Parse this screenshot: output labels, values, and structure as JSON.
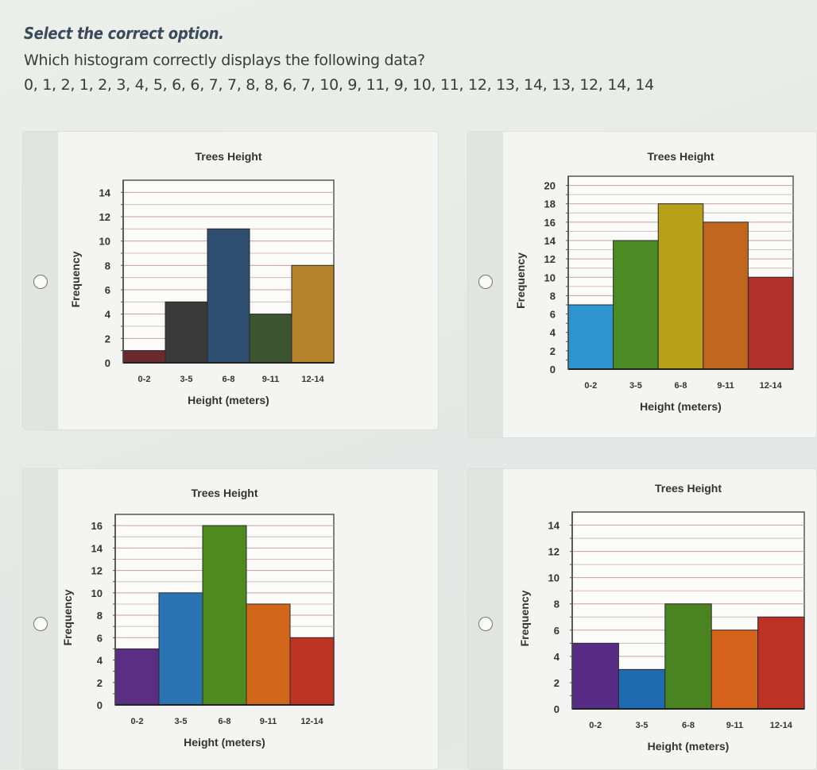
{
  "instruction": "Select the correct option.",
  "question": "Which histogram correctly displays the following data?",
  "data_values": "0, 1, 2, 1, 2, 3, 4, 5, 6, 6, 7, 7, 8, 8, 6, 7, 10, 9, 11, 9, 10, 11, 12, 13, 14, 13, 12, 14, 14",
  "chart_data": [
    {
      "type": "bar",
      "option": "A",
      "title": "Trees Height",
      "xlabel": "Height (meters)",
      "ylabel": "Frequency",
      "categories": [
        "0-2",
        "3-5",
        "6-8",
        "9-11",
        "12-14"
      ],
      "values": [
        1,
        5,
        11,
        4,
        8
      ],
      "colors": [
        "#6b2a2e",
        "#3a3a3a",
        "#2e4f70",
        "#3c5430",
        "#b5832a"
      ],
      "ylim": [
        0,
        15
      ],
      "yticks": [
        "0",
        "2",
        "4",
        "6",
        "8",
        "10",
        "12",
        "14"
      ],
      "grid": true
    },
    {
      "type": "bar",
      "option": "B",
      "title": "Trees Height",
      "xlabel": "Height (meters)",
      "ylabel": "Frequency",
      "categories": [
        "0-2",
        "3-5",
        "6-8",
        "9-11",
        "12-14"
      ],
      "values": [
        7,
        14,
        18,
        16,
        10
      ],
      "colors": [
        "#2f95d0",
        "#4c8a24",
        "#b8a018",
        "#c0661e",
        "#b0322a"
      ],
      "ylim": [
        0,
        21
      ],
      "yticks": [
        "0",
        "2",
        "4",
        "6",
        "8",
        "10",
        "12",
        "14",
        "16",
        "18",
        "20"
      ],
      "grid": true
    },
    {
      "type": "bar",
      "option": "C",
      "title": "Trees Height",
      "xlabel": "Height (meters)",
      "ylabel": "Frequency",
      "categories": [
        "0-2",
        "3-5",
        "6-8",
        "9-11",
        "12-14"
      ],
      "values": [
        5,
        10,
        16,
        9,
        6
      ],
      "colors": [
        "#5a2e82",
        "#2a74b4",
        "#4e8a1e",
        "#d2661a",
        "#be3424"
      ],
      "ylim": [
        0,
        17
      ],
      "yticks": [
        "0",
        "2",
        "4",
        "6",
        "8",
        "10",
        "12",
        "14",
        "16"
      ],
      "grid": true
    },
    {
      "type": "bar",
      "option": "D",
      "title": "Trees Height",
      "xlabel": "Height (meters)",
      "ylabel": "Frequency",
      "categories": [
        "0-2",
        "3-5",
        "6-8",
        "9-11",
        "12-14"
      ],
      "values": [
        5,
        3,
        8,
        6,
        7
      ],
      "colors": [
        "#582c84",
        "#1f6ab0",
        "#4a8420",
        "#d4621a",
        "#bc3224"
      ],
      "ylim": [
        0,
        15
      ],
      "yticks": [
        "0",
        "2",
        "4",
        "6",
        "8",
        "10",
        "12",
        "14"
      ],
      "grid": true
    }
  ]
}
